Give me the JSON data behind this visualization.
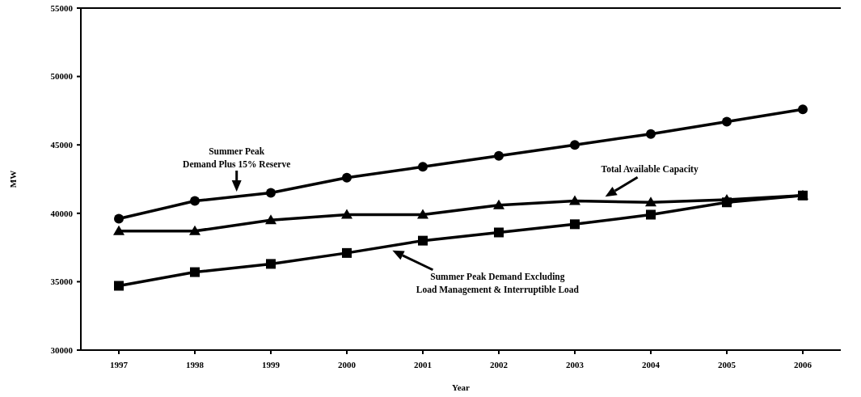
{
  "chart_data": {
    "type": "line",
    "xlabel": "Year",
    "ylabel": "MW",
    "categories": [
      "1997",
      "1998",
      "1999",
      "2000",
      "2001",
      "2002",
      "2003",
      "2004",
      "2005",
      "2006"
    ],
    "series": [
      {
        "name": "Summer Peak Demand Plus 15% Reserve",
        "color": "#000000",
        "marker": "circle",
        "values": [
          39600,
          40900,
          41500,
          42600,
          43400,
          44200,
          45000,
          45800,
          46700,
          47600
        ]
      },
      {
        "name": "Total Available Capacity",
        "color": "#000000",
        "marker": "triangle",
        "values": [
          38700,
          38700,
          39500,
          39900,
          39900,
          40600,
          40900,
          40800,
          41000,
          41300
        ]
      },
      {
        "name": "Summer Peak Demand Excluding Load Management & Interruptible Load",
        "color": "#000000",
        "marker": "square",
        "values": [
          34700,
          35700,
          36300,
          37100,
          38000,
          38600,
          39200,
          39900,
          40800,
          41300
        ]
      }
    ],
    "ylim": [
      30000,
      55000
    ],
    "yticks": [
      30000,
      35000,
      40000,
      45000,
      50000,
      55000
    ],
    "grid": false,
    "line_style": "solid"
  }
}
